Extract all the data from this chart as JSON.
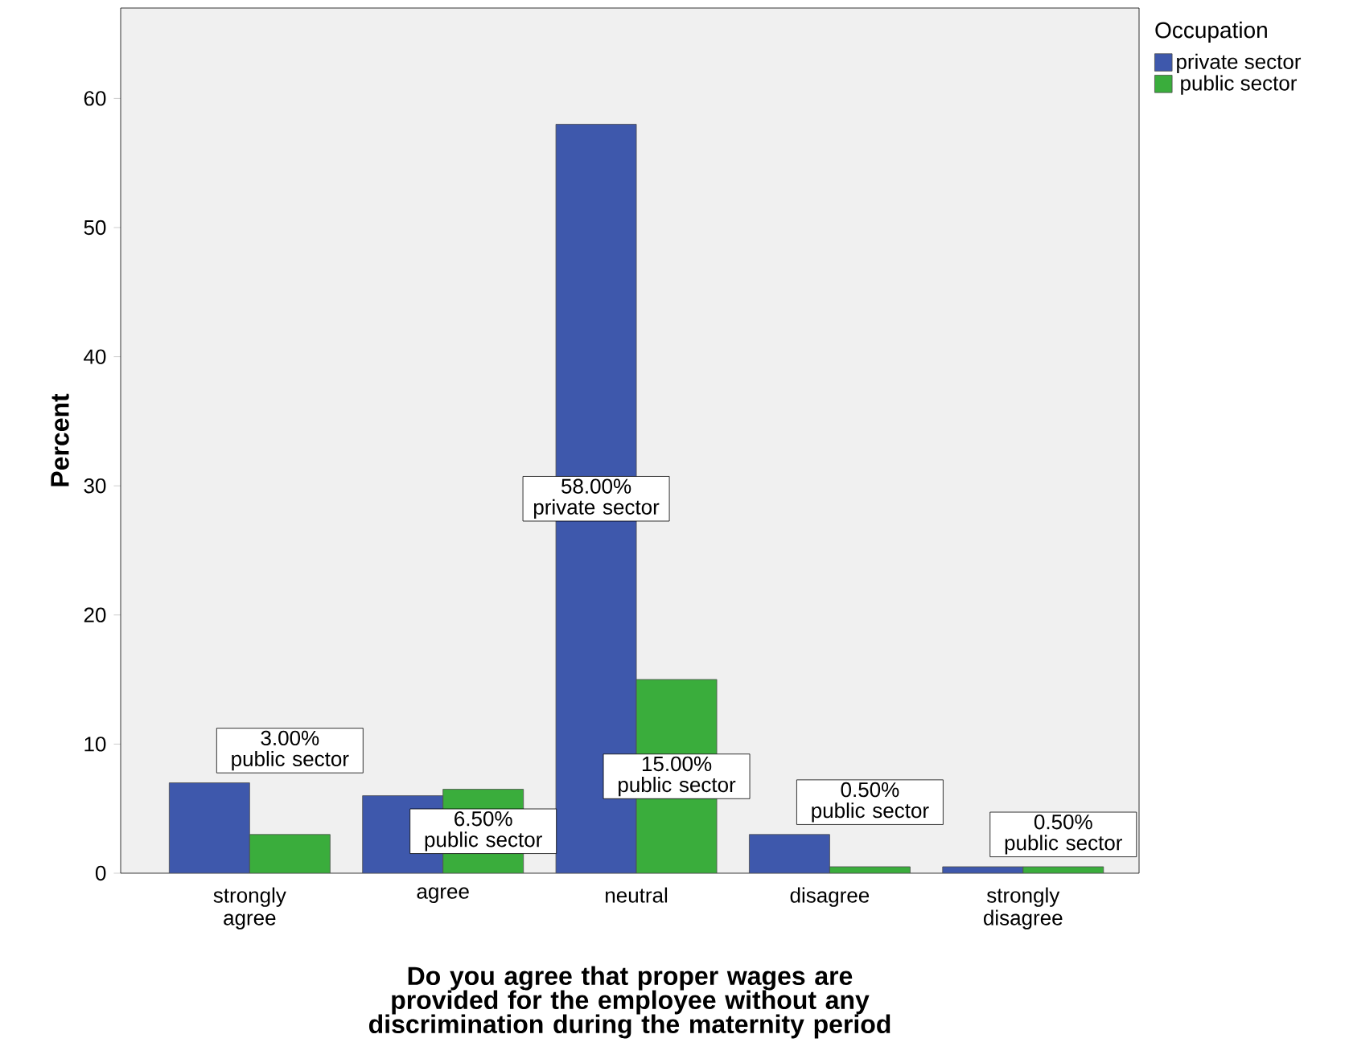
{
  "chart_data": {
    "type": "bar",
    "xlabel": "Do you agree that proper wages are provided for the employee without any discrimination during the maternity period",
    "ylabel": "Percent",
    "legend_title": "Occupation",
    "legend": "top right",
    "categories": [
      "strongly agree",
      "agree",
      "neutral",
      "disagree",
      "strongly disagree"
    ],
    "series": [
      {
        "name": "private sector",
        "color": "#3e58ac",
        "values": [
          7,
          6,
          58,
          3,
          0.5
        ],
        "value_labels": [
          null,
          null,
          "58.00% private sector",
          null,
          null
        ]
      },
      {
        "name": "public sector",
        "color": "#3aad3c",
        "values": [
          3,
          6.5,
          15,
          0.5,
          0.5
        ],
        "value_labels": [
          "3.00% public sector",
          "6.50% public sector",
          "15.00% public sector",
          "0.50% public sector",
          "0.50% public sector"
        ]
      }
    ],
    "ylim": [
      0,
      67
    ],
    "yticks": [
      0,
      10,
      20,
      30,
      40,
      50,
      60
    ],
    "grid": false
  }
}
